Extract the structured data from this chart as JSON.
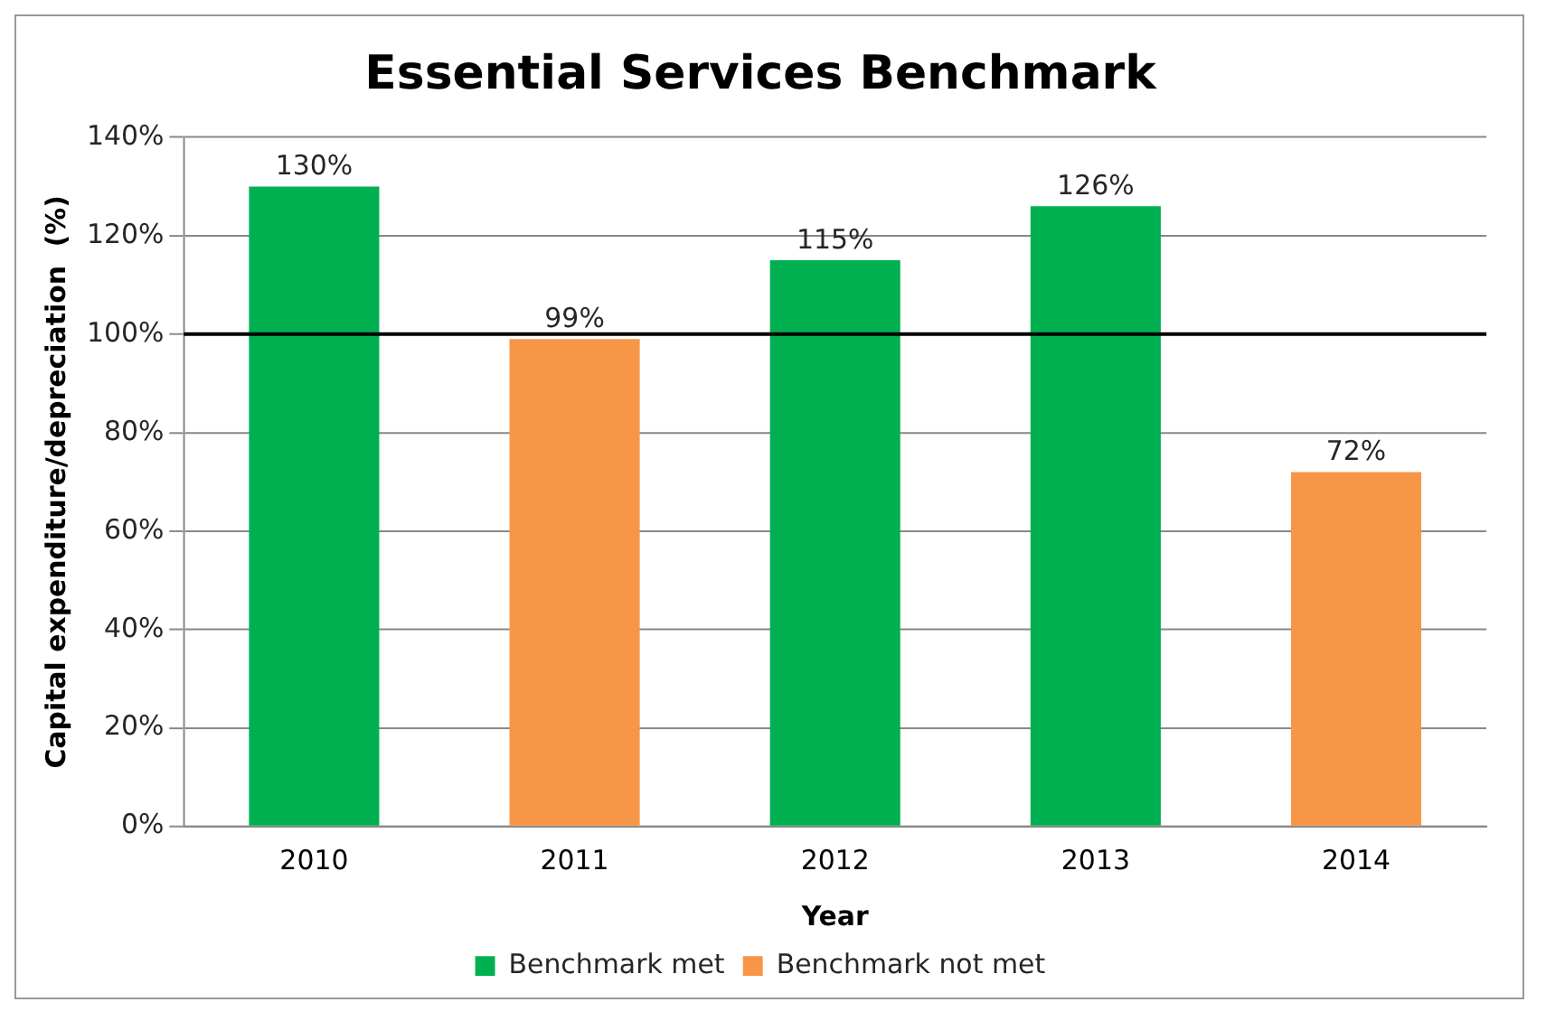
{
  "chart_data": {
    "type": "bar",
    "title": "Essential Services Benchmark",
    "xlabel": "Year",
    "ylabel": "Capital expenditure/depreciation  (%)",
    "categories": [
      "2010",
      "2011",
      "2012",
      "2013",
      "2014"
    ],
    "series": [
      {
        "name": "Benchmark met",
        "color": "#00b050",
        "values": [
          130,
          null,
          115,
          126,
          null
        ],
        "value_labels": [
          "130%",
          null,
          "115%",
          "126%",
          null
        ]
      },
      {
        "name": "Benchmark not met",
        "color": "#f79646",
        "values": [
          null,
          99,
          null,
          null,
          72
        ],
        "value_labels": [
          null,
          "99%",
          null,
          null,
          "72%"
        ]
      }
    ],
    "ylim": [
      0,
      140
    ],
    "yticks": [
      {
        "value": 0,
        "label": "0%"
      },
      {
        "value": 20,
        "label": "20%"
      },
      {
        "value": 40,
        "label": "40%"
      },
      {
        "value": 60,
        "label": "60%"
      },
      {
        "value": 80,
        "label": "80%"
      },
      {
        "value": 100,
        "label": "100%"
      },
      {
        "value": 120,
        "label": "120%"
      },
      {
        "value": 140,
        "label": "140%"
      }
    ],
    "ref_lines": [
      {
        "axis": "y",
        "value": 100,
        "color": "#000000"
      }
    ],
    "grid": "y",
    "legend": "bottom"
  }
}
